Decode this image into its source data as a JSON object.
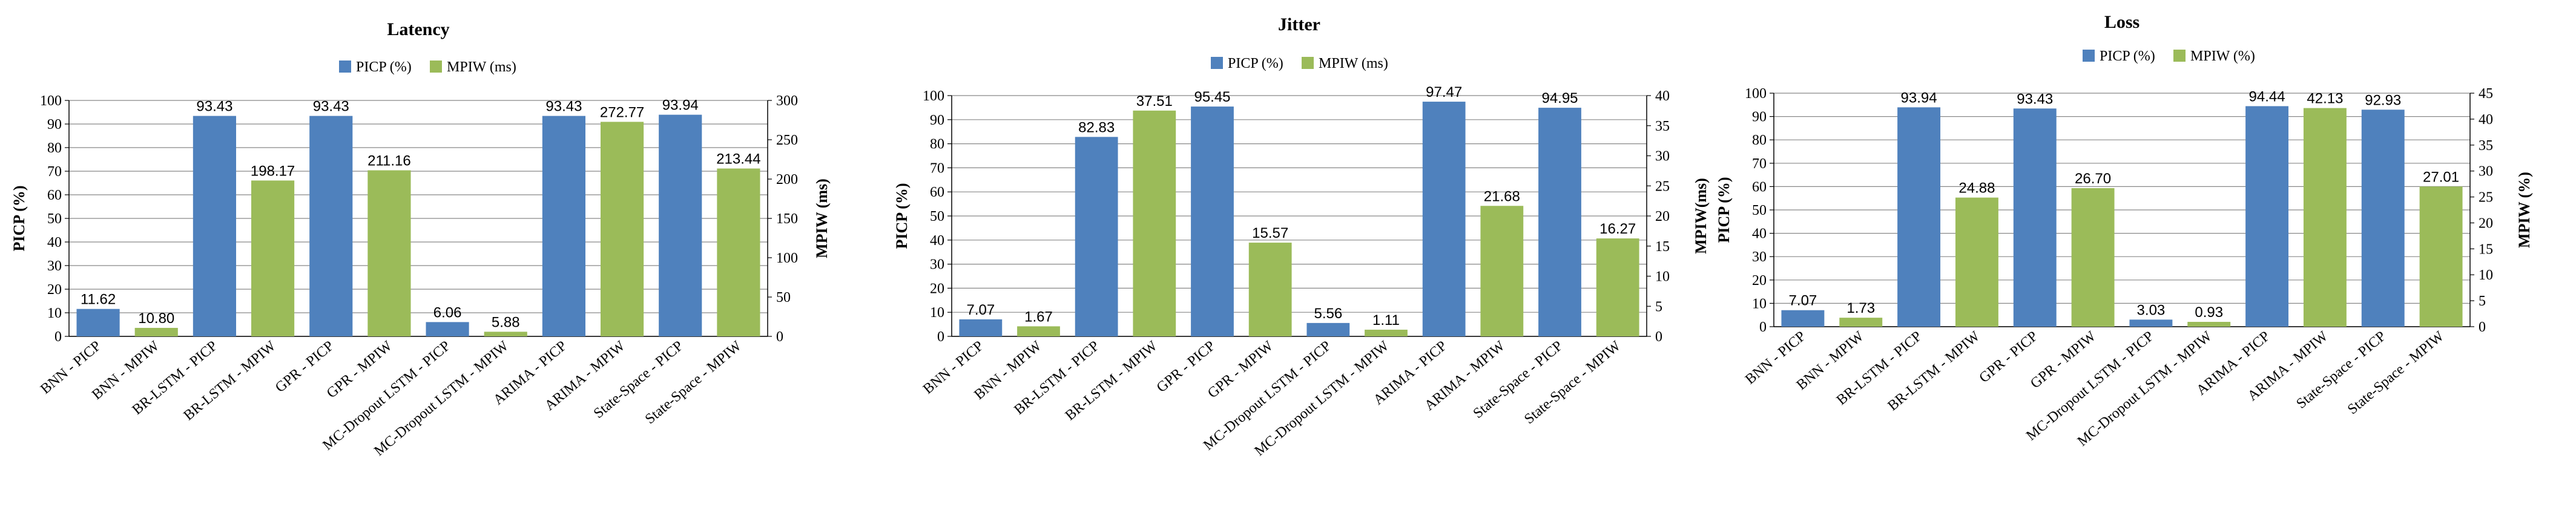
{
  "colors": {
    "picp": "#4F81BD",
    "mpiw": "#9BBB59",
    "axis": "#888888",
    "grid": "#888888"
  },
  "chart_data": [
    {
      "type": "bar",
      "title": "Latency",
      "ylabel": "PICP (%)",
      "y2label": "MPIW (ms)",
      "ylim": [
        0,
        100
      ],
      "y2lim": [
        0,
        300
      ],
      "yticks": [
        "0",
        "10",
        "20",
        "30",
        "40",
        "50",
        "60",
        "70",
        "80",
        "90",
        "100"
      ],
      "y2ticks": [
        "0",
        "50",
        "100",
        "150",
        "200",
        "250",
        "300"
      ],
      "legend": [
        "PICP (%)",
        "MPIW (ms)"
      ],
      "legend_position": "top",
      "grid": "horizontal",
      "categories": [
        "BNN - PICP",
        "BNN - MPIW",
        "BR-LSTM - PICP",
        "BR-LSTM - MPIW",
        "GPR - PICP",
        "GPR - MPIW",
        "MC-Dropout LSTM - PICP",
        "MC-Dropout LSTM - MPIW",
        "ARIMA - PICP",
        "ARIMA - MPIW",
        "State-Space - PICP",
        "State-Space - MPIW"
      ],
      "values": [
        11.62,
        10.8,
        93.43,
        198.17,
        93.43,
        211.16,
        6.06,
        5.88,
        93.43,
        272.77,
        93.94,
        213.44
      ],
      "labels": [
        "11.62",
        "10.80",
        "93.43",
        "198.17",
        "93.43",
        "211.16",
        "6.06",
        "5.88",
        "93.43",
        "272.77",
        "93.94",
        "213.44"
      ],
      "series_of_bar": [
        "picp",
        "mpiw",
        "picp",
        "mpiw",
        "picp",
        "mpiw",
        "picp",
        "mpiw",
        "picp",
        "mpiw",
        "picp",
        "mpiw"
      ]
    },
    {
      "type": "bar",
      "title": "Jitter",
      "ylabel": "PICP (%)",
      "y2label": "MPIW(ms)",
      "ylim": [
        0,
        100
      ],
      "y2lim": [
        0,
        40
      ],
      "yticks": [
        "0",
        "10",
        "20",
        "30",
        "40",
        "50",
        "60",
        "70",
        "80",
        "90",
        "100"
      ],
      "y2ticks": [
        "0",
        "5",
        "10",
        "15",
        "20",
        "25",
        "30",
        "35",
        "40"
      ],
      "legend": [
        "PICP (%)",
        "MPIW (ms)"
      ],
      "legend_position": "top",
      "grid": "horizontal",
      "categories": [
        "BNN - PICP",
        "BNN - MPIW",
        "BR-LSTM - PICP",
        "BR-LSTM - MPIW",
        "GPR - PICP",
        "GPR - MPIW",
        "MC-Dropout LSTM - PICP",
        "MC-Dropout LSTM - MPIW",
        "ARIMA - PICP",
        "ARIMA - MPIW",
        "State-Space - PICP",
        "State-Space - MPIW"
      ],
      "values": [
        7.07,
        1.67,
        82.83,
        37.51,
        95.45,
        15.57,
        5.56,
        1.11,
        97.47,
        21.68,
        94.95,
        16.27
      ],
      "labels": [
        "7.07",
        "1.67",
        "82.83",
        "37.51",
        "95.45",
        "15.57",
        "5.56",
        "1.11",
        "97.47",
        "21.68",
        "94.95",
        "16.27"
      ],
      "series_of_bar": [
        "picp",
        "mpiw",
        "picp",
        "mpiw",
        "picp",
        "mpiw",
        "picp",
        "mpiw",
        "picp",
        "mpiw",
        "picp",
        "mpiw"
      ]
    },
    {
      "type": "bar",
      "title": "Loss",
      "ylabel": "PICP (%)",
      "y2label": "MPIW (%)",
      "ylim": [
        0,
        100
      ],
      "y2lim": [
        0,
        45
      ],
      "yticks": [
        "0",
        "10",
        "20",
        "30",
        "40",
        "50",
        "60",
        "70",
        "80",
        "90",
        "100"
      ],
      "y2ticks": [
        "0",
        "5",
        "10",
        "15",
        "20",
        "25",
        "30",
        "35",
        "40",
        "45"
      ],
      "legend": [
        "PICP (%)",
        "MPIW (%)"
      ],
      "legend_position": "top",
      "grid": "horizontal",
      "categories": [
        "BNN - PICP",
        "BNN - MPIW",
        "BR-LSTM - PICP",
        "BR-LSTM - MPIW",
        "GPR - PICP",
        "GPR - MPIW",
        "MC-Dropout LSTM - PICP",
        "MC-Dropout LSTM - MPIW",
        "ARIMA - PICP",
        "ARIMA - MPIW",
        "State-Space - PICP",
        "State-Space - MPIW"
      ],
      "values": [
        7.07,
        1.73,
        93.94,
        24.88,
        93.43,
        26.7,
        3.03,
        0.93,
        94.44,
        42.13,
        92.93,
        27.01
      ],
      "labels": [
        "7.07",
        "1.73",
        "93.94",
        "24.88",
        "93.43",
        "26.70",
        "3.03",
        "0.93",
        "94.44",
        "42.13",
        "92.93",
        "27.01"
      ],
      "series_of_bar": [
        "picp",
        "mpiw",
        "picp",
        "mpiw",
        "picp",
        "mpiw",
        "picp",
        "mpiw",
        "picp",
        "mpiw",
        "picp",
        "mpiw"
      ]
    }
  ]
}
